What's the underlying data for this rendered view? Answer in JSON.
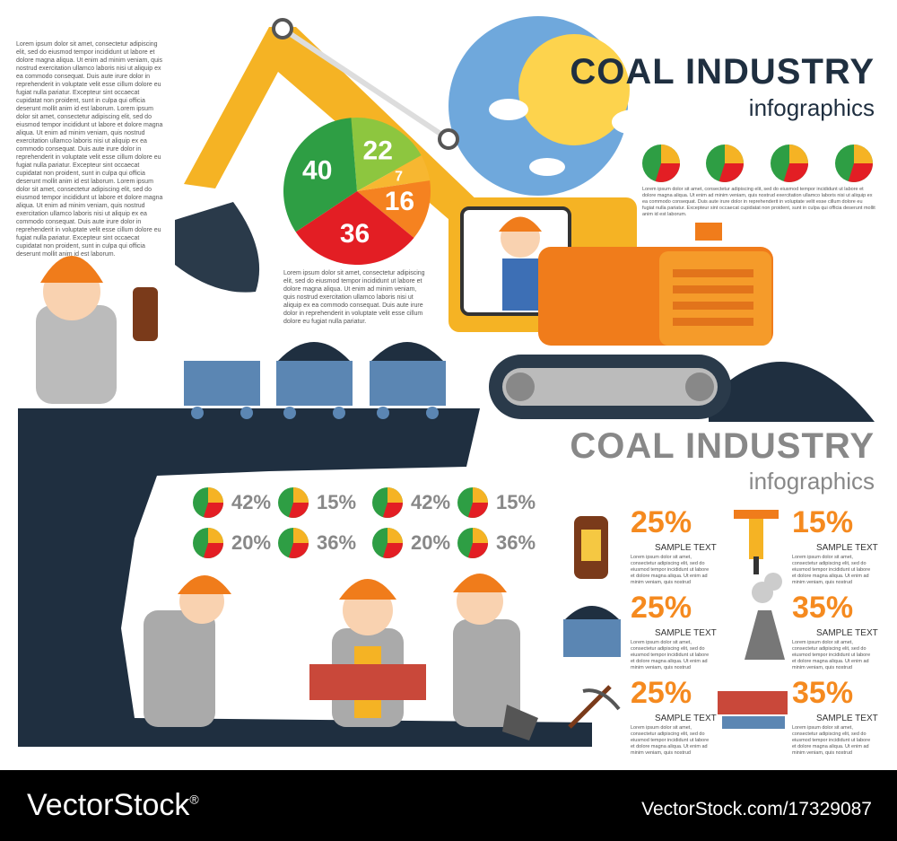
{
  "intro_text": "Lorem ipsum dolor sit amet, consectetur adipiscing elit, sed do eiusmod tempor incididunt ut labore et dolore magna aliqua. Ut enim ad minim veniam, quis nostrud exercitation ullamco laboris nisi ut aliquip ex ea commodo consequat. Duis aute irure dolor in reprehenderit in voluptate velit esse cillum dolore eu fugiat nulla pariatur. Excepteur sint occaecat cupidatat non proident, sunt in culpa qui officia deserunt mollit anim id est laborum. Lorem ipsum dolor sit amet, consectetur adipiscing elit, sed do eiusmod tempor incididunt ut labore et dolore magna aliqua. Ut enim ad minim veniam, quis nostrud exercitation ullamco laboris nisi ut aliquip ex ea commodo consequat. Duis aute irure dolor in reprehenderit in voluptate velit esse cillum dolore eu fugiat nulla pariatur. Excepteur sint occaecat cupidatat non proident, sunt in culpa qui officia deserunt mollit anim id est laborum. Lorem ipsum dolor sit amet, consectetur adipiscing elit, sed do eiusmod tempor incididunt ut labore et dolore magna aliqua. Ut enim ad minim veniam, quis nostrud exercitation ullamco laboris nisi ut aliquip ex ea commodo consequat. Duis aute irure dolor in reprehenderit in voluptate velit esse cillum dolore eu fugiat nulla pariatur. Excepteur sint occaecat cupidatat non proident, sunt in culpa qui officia deserunt mollit anim id est laborum.",
  "pie": {
    "values": [
      22,
      7,
      16,
      36,
      40
    ],
    "colors": [
      "#8dc63f",
      "#f7b731",
      "#f58220",
      "#e31e24",
      "#2e9e44"
    ]
  },
  "pie_text": "Lorem ipsum dolor sit amet, consectetur adipiscing elit, sed do eiusmod tempor incididunt ut labore et dolore magna aliqua. Ut enim ad minim veniam, quis nostrud exercitation ullamco laboris nisi ut aliquip ex ea commodo consequat. Duis aute irure dolor in reprehenderit in voluptate velit esse cillum dolore eu fugiat nulla pariatur.",
  "header_top": {
    "title": "COAL INDUSTRY",
    "subtitle": "infographics"
  },
  "header_top_text": "Lorem ipsum dolor sit amet, consectetur adipiscing elit, sed do eiusmod tempor incididunt ut labore et dolore magna aliqua. Ut enim ad minim veniam, quis nostrud exercitation ullamco laboris nisi ut aliquip ex ea commodo consequat. Duis aute irure dolor in reprehenderit in voluptate velit esse cillum dolore eu fugiat nulla pariatur. Excepteur sint occaecat cupidatat non proident, sunt in culpa qui officia deserunt mollit anim id est laborum.",
  "header_bottom": {
    "title": "COAL INDUSTRY",
    "subtitle": "infographics"
  },
  "cave_stats": [
    [
      "42%",
      "15%",
      "42%",
      "15%"
    ],
    [
      "20%",
      "36%",
      "20%",
      "36%"
    ]
  ],
  "stats": [
    {
      "value": "25%",
      "caption": "SAMPLE TEXT",
      "text": "Lorem ipsum dolor sit amet, consectetur adipiscing elit, sed do eiusmod tempor incididunt ut labore et dolore magna aliqua. Ut enim ad minim veniam, quis nostrud"
    },
    {
      "value": "15%",
      "caption": "SAMPLE TEXT",
      "text": "Lorem ipsum dolor sit amet, consectetur adipiscing elit, sed do eiusmod tempor incididunt ut labore et dolore magna aliqua. Ut enim ad minim veniam, quis nostrud"
    },
    {
      "value": "25%",
      "caption": "SAMPLE TEXT",
      "text": "Lorem ipsum dolor sit amet, consectetur adipiscing elit, sed do eiusmod tempor incididunt ut labore et dolore magna aliqua. Ut enim ad minim veniam, quis nostrud"
    },
    {
      "value": "35%",
      "caption": "SAMPLE TEXT",
      "text": "Lorem ipsum dolor sit amet, consectetur adipiscing elit, sed do eiusmod tempor incididunt ut labore et dolore magna aliqua. Ut enim ad minim veniam, quis nostrud"
    },
    {
      "value": "25%",
      "caption": "SAMPLE TEXT",
      "text": "Lorem ipsum dolor sit amet, consectetur adipiscing elit, sed do eiusmod tempor incididunt ut labore et dolore magna aliqua. Ut enim ad minim veniam, quis nostrud"
    },
    {
      "value": "35%",
      "caption": "SAMPLE TEXT",
      "text": "Lorem ipsum dolor sit amet, consectetur adipiscing elit, sed do eiusmod tempor incididunt ut labore et dolore magna aliqua. Ut enim ad minim veniam, quis nostrud"
    }
  ],
  "footer": {
    "brand": "VectorStock",
    "mark": "®",
    "url": "VectorStock.com/17329087"
  }
}
